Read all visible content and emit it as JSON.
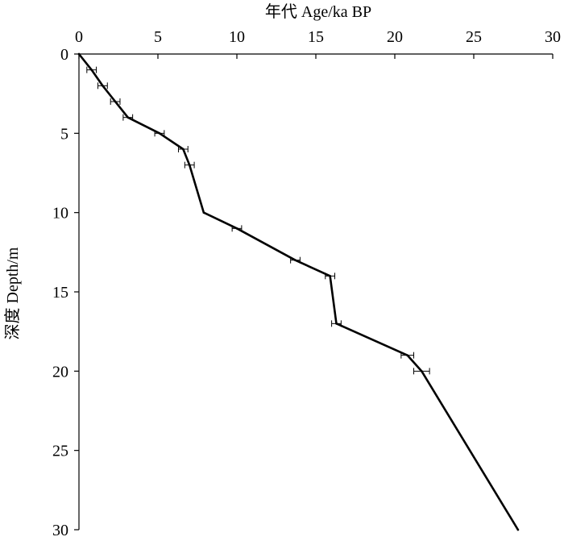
{
  "chart_data": {
    "type": "line",
    "xlabel": "年代 Age/ka BP",
    "ylabel": "深度 Depth/m",
    "xlim": [
      0,
      30
    ],
    "ylim": [
      0,
      30
    ],
    "y_inverted": true,
    "x_axis_position": "top",
    "x_ticks": [
      0,
      5,
      10,
      15,
      20,
      25,
      30
    ],
    "y_ticks": [
      0,
      5,
      10,
      15,
      20,
      25,
      30
    ],
    "x_tick_labels": [
      "0",
      "5",
      "10",
      "15",
      "20",
      "25",
      "30"
    ],
    "y_tick_labels": [
      "0",
      "5",
      "10",
      "15",
      "20",
      "25",
      "30"
    ],
    "grid": false,
    "line_color": "#000000",
    "series": [
      {
        "points": [
          {
            "x": 0,
            "y": 0
          },
          {
            "x": 0.8,
            "y": 1
          },
          {
            "x": 1.5,
            "y": 2
          },
          {
            "x": 2.3,
            "y": 3
          },
          {
            "x": 3.1,
            "y": 4
          },
          {
            "x": 5.1,
            "y": 5
          },
          {
            "x": 6.6,
            "y": 6
          },
          {
            "x": 7.0,
            "y": 7
          },
          {
            "x": 7.9,
            "y": 10
          },
          {
            "x": 10.0,
            "y": 11
          },
          {
            "x": 13.7,
            "y": 13
          },
          {
            "x": 15.9,
            "y": 14
          },
          {
            "x": 16.3,
            "y": 17
          },
          {
            "x": 20.8,
            "y": 19
          },
          {
            "x": 21.7,
            "y": 20
          },
          {
            "x": 27.8,
            "y": 30
          }
        ],
        "error_bars": [
          {
            "x": 0.8,
            "y": 1,
            "minus": 0.3,
            "plus": 0.3
          },
          {
            "x": 1.5,
            "y": 2,
            "minus": 0.3,
            "plus": 0.3
          },
          {
            "x": 2.3,
            "y": 3,
            "minus": 0.3,
            "plus": 0.3
          },
          {
            "x": 3.1,
            "y": 4,
            "minus": 0.3,
            "plus": 0.3
          },
          {
            "x": 5.1,
            "y": 5,
            "minus": 0.3,
            "plus": 0.3
          },
          {
            "x": 6.6,
            "y": 6,
            "minus": 0.3,
            "plus": 0.3
          },
          {
            "x": 7.0,
            "y": 7,
            "minus": 0.3,
            "plus": 0.3
          },
          {
            "x": 10.0,
            "y": 11,
            "minus": 0.3,
            "plus": 0.3
          },
          {
            "x": 13.7,
            "y": 13,
            "minus": 0.3,
            "plus": 0.3
          },
          {
            "x": 15.9,
            "y": 14,
            "minus": 0.3,
            "plus": 0.3
          },
          {
            "x": 16.3,
            "y": 17,
            "minus": 0.3,
            "plus": 0.3
          },
          {
            "x": 20.8,
            "y": 19,
            "minus": 0.4,
            "plus": 0.4
          },
          {
            "x": 21.7,
            "y": 20,
            "minus": 0.5,
            "plus": 0.5
          }
        ]
      }
    ]
  }
}
